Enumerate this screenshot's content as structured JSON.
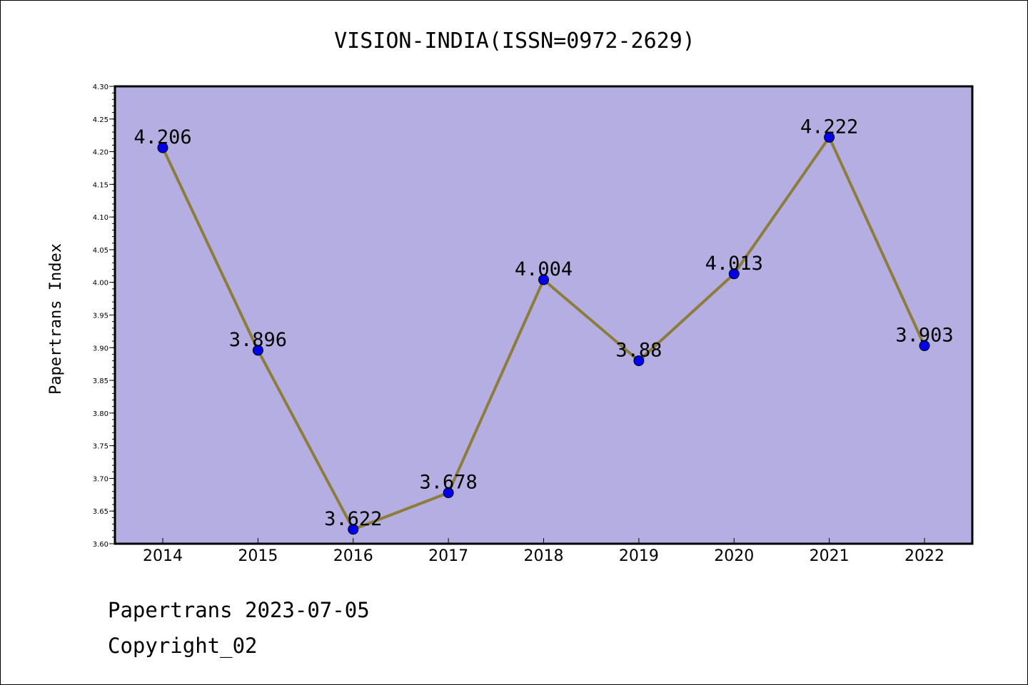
{
  "chart_data": {
    "type": "line",
    "title": "VISION-INDIA(ISSN=0972-2629)",
    "xlabel": "",
    "ylabel": "Papertrans Index",
    "categories": [
      "2014",
      "2015",
      "2016",
      "2017",
      "2018",
      "2019",
      "2020",
      "2021",
      "2022"
    ],
    "series": [
      {
        "values": [
          4.206,
          3.896,
          3.622,
          3.678,
          4.004,
          3.88,
          4.013,
          4.222,
          3.903
        ],
        "labels": [
          "4.206",
          "3.896",
          "3.622",
          "3.678",
          "4.004",
          "3.88",
          "4.013",
          "4.222",
          "3.903"
        ]
      }
    ],
    "ylim": [
      3.6,
      4.3
    ],
    "yticks": [
      "3.60",
      "3.65",
      "3.70",
      "3.75",
      "3.80",
      "3.85",
      "3.90",
      "3.95",
      "4.00",
      "4.05",
      "4.10",
      "4.15",
      "4.20",
      "4.25",
      "4.30"
    ],
    "grid": false,
    "legend": "none",
    "colors": {
      "plot_background": "#b5aee2",
      "line": "#8d7d3d",
      "marker": "#0000ee",
      "frame": "#000000"
    }
  },
  "footer": {
    "line1": "Papertrans 2023-07-05",
    "line2": "Copyright_02"
  }
}
